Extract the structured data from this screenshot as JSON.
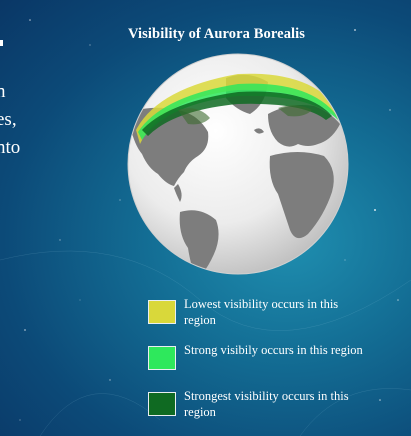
{
  "left_text_fragments": [
    "n",
    "es,",
    "nto"
  ],
  "title": "Visibility of Aurora Borealis",
  "legend": [
    {
      "label": "Lowest visibility occurs in this region",
      "color": "#d9d83a"
    },
    {
      "label": "Strong visibily occurs in this region",
      "color": "#2ee85c"
    },
    {
      "label": "Strongest visibility occurs in this region",
      "color": "#0f6a22"
    }
  ]
}
